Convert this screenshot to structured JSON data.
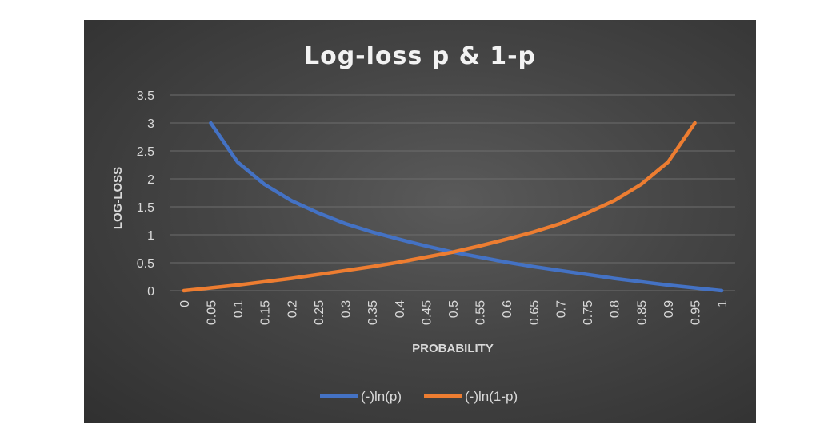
{
  "chart_data": {
    "type": "line",
    "title": "Log-loss p & 1-p",
    "xlabel": "PROBABILITY",
    "ylabel": "LOG-LOSS",
    "categories": [
      "0",
      "0.05",
      "0.1",
      "0.15",
      "0.2",
      "0.25",
      "0.3",
      "0.35",
      "0.4",
      "0.45",
      "0.5",
      "0.55",
      "0.6",
      "0.65",
      "0.7",
      "0.75",
      "0.8",
      "0.85",
      "0.9",
      "0.95",
      "1"
    ],
    "yticks": [
      "0",
      "0.5",
      "1",
      "1.5",
      "2",
      "2.5",
      "3",
      "3.5"
    ],
    "ylim": [
      0,
      3.5
    ],
    "grid": true,
    "legend": "bottom",
    "series": [
      {
        "name": "(-)ln(p)",
        "color": "#4472c4",
        "values": [
          null,
          3.0,
          2.3,
          1.9,
          1.61,
          1.39,
          1.2,
          1.05,
          0.92,
          0.8,
          0.69,
          0.6,
          0.51,
          0.43,
          0.36,
          0.29,
          0.22,
          0.16,
          0.1,
          0.05,
          0
        ]
      },
      {
        "name": "(-)ln(1-p)",
        "color": "#ed7d31",
        "values": [
          0,
          0.05,
          0.1,
          0.16,
          0.22,
          0.29,
          0.36,
          0.43,
          0.51,
          0.6,
          0.69,
          0.8,
          0.92,
          1.05,
          1.2,
          1.39,
          1.61,
          1.9,
          2.3,
          3.0,
          null
        ]
      }
    ]
  }
}
